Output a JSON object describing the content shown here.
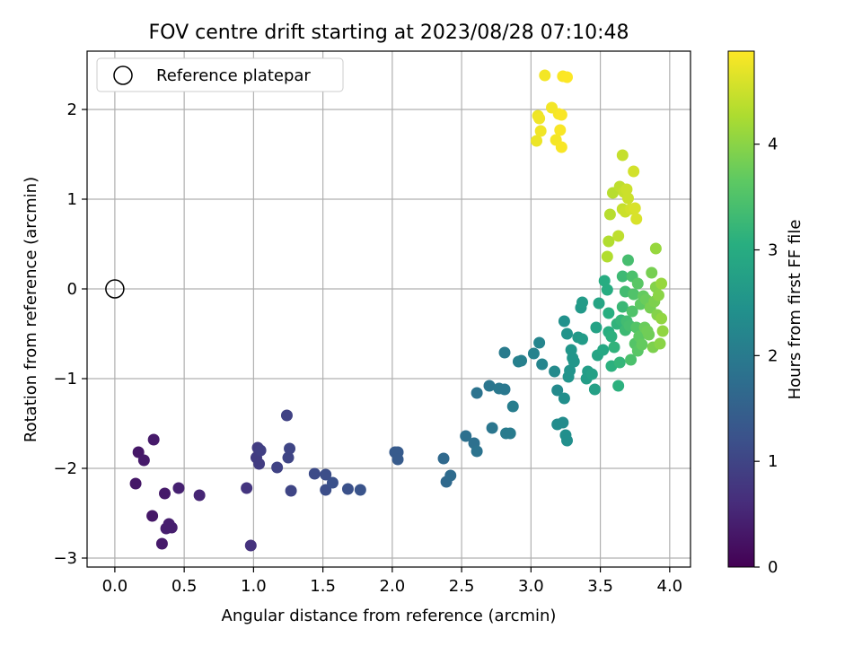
{
  "chart_data": {
    "type": "scatter",
    "title": "FOV centre drift starting at 2023/08/28 07:10:48",
    "xlabel": "Angular distance from reference (arcmin)",
    "ylabel": "Rotation from reference (arcmin)",
    "xlim": [
      -0.2,
      4.15
    ],
    "ylim": [
      -3.1,
      2.65
    ],
    "xticks": [
      0.0,
      0.5,
      1.0,
      1.5,
      2.0,
      2.5,
      3.0,
      3.5,
      4.0
    ],
    "xtick_labels": [
      "0.0",
      "0.5",
      "1.0",
      "1.5",
      "2.0",
      "2.5",
      "3.0",
      "3.5",
      "4.0"
    ],
    "yticks": [
      -3,
      -2,
      -1,
      0,
      1,
      2
    ],
    "ytick_labels": [
      "−3",
      "−2",
      "−1",
      "0",
      "1",
      "2"
    ],
    "grid": true,
    "legend": {
      "placement": "top-left",
      "entries": [
        {
          "label": "Reference platepar",
          "marker": "open-circle",
          "color": "#000000"
        }
      ]
    },
    "reference_point": {
      "x": 0.0,
      "y": 0.0,
      "label": "Reference platepar"
    },
    "colorbar": {
      "label": "Hours from first FF file",
      "colormap": "viridis",
      "range": [
        0,
        4.88
      ],
      "ticks": [
        0,
        1,
        2,
        3,
        4
      ],
      "tick_labels": [
        "0",
        "1",
        "2",
        "3",
        "4"
      ]
    },
    "points": [
      {
        "x": 0.15,
        "y": -2.17,
        "c": 0.3
      },
      {
        "x": 0.17,
        "y": -1.82,
        "c": 0.3
      },
      {
        "x": 0.21,
        "y": -1.91,
        "c": 0.35
      },
      {
        "x": 0.28,
        "y": -1.68,
        "c": 0.35
      },
      {
        "x": 0.27,
        "y": -2.53,
        "c": 0.3
      },
      {
        "x": 0.34,
        "y": -2.84,
        "c": 0.35
      },
      {
        "x": 0.36,
        "y": -2.28,
        "c": 0.35
      },
      {
        "x": 0.37,
        "y": -2.67,
        "c": 0.4
      },
      {
        "x": 0.39,
        "y": -2.62,
        "c": 0.4
      },
      {
        "x": 0.41,
        "y": -2.66,
        "c": 0.4
      },
      {
        "x": 0.46,
        "y": -2.22,
        "c": 0.45
      },
      {
        "x": 0.61,
        "y": -2.3,
        "c": 0.5
      },
      {
        "x": 0.95,
        "y": -2.22,
        "c": 0.75
      },
      {
        "x": 0.98,
        "y": -2.86,
        "c": 0.7
      },
      {
        "x": 1.02,
        "y": -1.88,
        "c": 0.85
      },
      {
        "x": 1.03,
        "y": -1.77,
        "c": 0.85
      },
      {
        "x": 1.04,
        "y": -1.95,
        "c": 0.85
      },
      {
        "x": 1.05,
        "y": -1.8,
        "c": 0.9
      },
      {
        "x": 1.17,
        "y": -1.99,
        "c": 0.95
      },
      {
        "x": 1.24,
        "y": -1.41,
        "c": 0.95
      },
      {
        "x": 1.25,
        "y": -1.88,
        "c": 1.0
      },
      {
        "x": 1.26,
        "y": -1.78,
        "c": 1.0
      },
      {
        "x": 1.27,
        "y": -2.25,
        "c": 1.0
      },
      {
        "x": 1.44,
        "y": -2.06,
        "c": 1.1
      },
      {
        "x": 1.52,
        "y": -2.07,
        "c": 1.15
      },
      {
        "x": 1.52,
        "y": -2.24,
        "c": 1.15
      },
      {
        "x": 1.57,
        "y": -2.16,
        "c": 1.2
      },
      {
        "x": 1.68,
        "y": -2.23,
        "c": 1.2
      },
      {
        "x": 1.77,
        "y": -2.24,
        "c": 1.25
      },
      {
        "x": 2.02,
        "y": -1.82,
        "c": 1.4
      },
      {
        "x": 2.04,
        "y": -1.82,
        "c": 1.4
      },
      {
        "x": 2.04,
        "y": -1.9,
        "c": 1.4
      },
      {
        "x": 2.37,
        "y": -1.89,
        "c": 1.65
      },
      {
        "x": 2.39,
        "y": -2.15,
        "c": 1.65
      },
      {
        "x": 2.42,
        "y": -2.08,
        "c": 1.7
      },
      {
        "x": 2.53,
        "y": -1.64,
        "c": 1.8
      },
      {
        "x": 2.59,
        "y": -1.72,
        "c": 1.8
      },
      {
        "x": 2.61,
        "y": -1.81,
        "c": 1.85
      },
      {
        "x": 2.61,
        "y": -1.16,
        "c": 1.85
      },
      {
        "x": 2.7,
        "y": -1.08,
        "c": 1.9
      },
      {
        "x": 2.72,
        "y": -1.55,
        "c": 1.9
      },
      {
        "x": 2.77,
        "y": -1.11,
        "c": 1.95
      },
      {
        "x": 2.81,
        "y": -0.71,
        "c": 2.0
      },
      {
        "x": 2.81,
        "y": -1.12,
        "c": 1.95
      },
      {
        "x": 2.82,
        "y": -1.61,
        "c": 2.0
      },
      {
        "x": 2.85,
        "y": -1.61,
        "c": 2.0
      },
      {
        "x": 2.87,
        "y": -1.31,
        "c": 2.05
      },
      {
        "x": 2.91,
        "y": -0.81,
        "c": 2.1
      },
      {
        "x": 2.93,
        "y": -0.8,
        "c": 2.1
      },
      {
        "x": 3.02,
        "y": -0.72,
        "c": 2.15
      },
      {
        "x": 3.06,
        "y": -0.6,
        "c": 2.2
      },
      {
        "x": 3.08,
        "y": -0.84,
        "c": 2.2
      },
      {
        "x": 3.17,
        "y": -0.92,
        "c": 2.3
      },
      {
        "x": 3.19,
        "y": -1.13,
        "c": 2.3
      },
      {
        "x": 3.19,
        "y": -1.51,
        "c": 2.35
      },
      {
        "x": 3.23,
        "y": -1.49,
        "c": 2.35
      },
      {
        "x": 3.24,
        "y": -1.22,
        "c": 2.4
      },
      {
        "x": 3.24,
        "y": -0.36,
        "c": 2.45
      },
      {
        "x": 3.25,
        "y": -1.63,
        "c": 2.4
      },
      {
        "x": 3.26,
        "y": -1.69,
        "c": 2.4
      },
      {
        "x": 3.26,
        "y": -0.5,
        "c": 2.5
      },
      {
        "x": 3.27,
        "y": -0.98,
        "c": 2.5
      },
      {
        "x": 3.28,
        "y": -0.91,
        "c": 2.5
      },
      {
        "x": 3.29,
        "y": -0.68,
        "c": 2.55
      },
      {
        "x": 3.3,
        "y": -0.77,
        "c": 2.55
      },
      {
        "x": 3.31,
        "y": -0.81,
        "c": 2.55
      },
      {
        "x": 3.34,
        "y": -0.54,
        "c": 2.6
      },
      {
        "x": 3.36,
        "y": -0.21,
        "c": 2.6
      },
      {
        "x": 3.37,
        "y": -0.15,
        "c": 2.65
      },
      {
        "x": 3.37,
        "y": -0.56,
        "c": 2.65
      },
      {
        "x": 3.4,
        "y": -1.0,
        "c": 2.7
      },
      {
        "x": 3.41,
        "y": -0.92,
        "c": 2.7
      },
      {
        "x": 3.44,
        "y": -0.95,
        "c": 2.75
      },
      {
        "x": 3.46,
        "y": -1.12,
        "c": 2.75
      },
      {
        "x": 3.47,
        "y": -0.43,
        "c": 2.8
      },
      {
        "x": 3.48,
        "y": -0.74,
        "c": 2.85
      },
      {
        "x": 3.49,
        "y": -0.16,
        "c": 2.85
      },
      {
        "x": 3.52,
        "y": -0.68,
        "c": 2.9
      },
      {
        "x": 3.53,
        "y": 0.09,
        "c": 3.0
      },
      {
        "x": 3.55,
        "y": -0.01,
        "c": 3.0
      },
      {
        "x": 3.56,
        "y": -0.27,
        "c": 3.05
      },
      {
        "x": 3.56,
        "y": -0.48,
        "c": 3.05
      },
      {
        "x": 3.58,
        "y": -0.53,
        "c": 3.1
      },
      {
        "x": 3.58,
        "y": -0.86,
        "c": 3.1
      },
      {
        "x": 3.6,
        "y": -0.65,
        "c": 3.15
      },
      {
        "x": 3.62,
        "y": -0.39,
        "c": 3.15
      },
      {
        "x": 3.63,
        "y": -1.08,
        "c": 3.1
      },
      {
        "x": 3.64,
        "y": -0.82,
        "c": 3.2
      },
      {
        "x": 3.65,
        "y": -0.35,
        "c": 3.2
      },
      {
        "x": 3.66,
        "y": -0.2,
        "c": 3.25
      },
      {
        "x": 3.66,
        "y": 0.14,
        "c": 3.3
      },
      {
        "x": 3.68,
        "y": -0.46,
        "c": 3.3
      },
      {
        "x": 3.68,
        "y": -0.03,
        "c": 3.35
      },
      {
        "x": 3.69,
        "y": -0.36,
        "c": 3.35
      },
      {
        "x": 3.7,
        "y": 0.32,
        "c": 3.4
      },
      {
        "x": 3.71,
        "y": -0.41,
        "c": 3.4
      },
      {
        "x": 3.72,
        "y": -0.79,
        "c": 3.45
      },
      {
        "x": 3.73,
        "y": 0.14,
        "c": 3.45
      },
      {
        "x": 3.73,
        "y": -0.25,
        "c": 3.5
      },
      {
        "x": 3.74,
        "y": -0.06,
        "c": 3.5
      },
      {
        "x": 3.75,
        "y": -0.61,
        "c": 3.55
      },
      {
        "x": 3.76,
        "y": -0.43,
        "c": 3.55
      },
      {
        "x": 3.77,
        "y": -0.69,
        "c": 3.6
      },
      {
        "x": 3.77,
        "y": 0.06,
        "c": 3.6
      },
      {
        "x": 3.78,
        "y": -0.53,
        "c": 3.65
      },
      {
        "x": 3.79,
        "y": -0.17,
        "c": 3.65
      },
      {
        "x": 3.8,
        "y": -0.62,
        "c": 3.7
      },
      {
        "x": 3.81,
        "y": -0.08,
        "c": 3.7
      },
      {
        "x": 3.82,
        "y": -0.43,
        "c": 3.75
      },
      {
        "x": 3.83,
        "y": -0.12,
        "c": 3.75
      },
      {
        "x": 3.84,
        "y": -0.47,
        "c": 3.8
      },
      {
        "x": 3.85,
        "y": -0.51,
        "c": 3.8
      },
      {
        "x": 3.86,
        "y": -0.21,
        "c": 3.85
      },
      {
        "x": 3.87,
        "y": 0.18,
        "c": 3.85
      },
      {
        "x": 3.88,
        "y": -0.65,
        "c": 3.9
      },
      {
        "x": 3.89,
        "y": -0.14,
        "c": 3.9
      },
      {
        "x": 3.9,
        "y": 0.02,
        "c": 3.95
      },
      {
        "x": 3.91,
        "y": -0.29,
        "c": 3.95
      },
      {
        "x": 3.92,
        "y": -0.07,
        "c": 4.0
      },
      {
        "x": 3.93,
        "y": -0.61,
        "c": 4.0
      },
      {
        "x": 3.94,
        "y": -0.33,
        "c": 4.05
      },
      {
        "x": 3.95,
        "y": -0.47,
        "c": 4.05
      },
      {
        "x": 3.9,
        "y": 0.45,
        "c": 4.1
      },
      {
        "x": 3.94,
        "y": 0.06,
        "c": 4.1
      },
      {
        "x": 3.55,
        "y": 0.36,
        "c": 4.3
      },
      {
        "x": 3.56,
        "y": 0.53,
        "c": 4.3
      },
      {
        "x": 3.57,
        "y": 0.83,
        "c": 4.35
      },
      {
        "x": 3.59,
        "y": 1.07,
        "c": 4.35
      },
      {
        "x": 3.63,
        "y": 0.59,
        "c": 4.4
      },
      {
        "x": 3.64,
        "y": 1.14,
        "c": 4.4
      },
      {
        "x": 3.66,
        "y": 1.49,
        "c": 4.45
      },
      {
        "x": 3.66,
        "y": 0.89,
        "c": 4.45
      },
      {
        "x": 3.67,
        "y": 1.08,
        "c": 4.45
      },
      {
        "x": 3.68,
        "y": 0.86,
        "c": 4.5
      },
      {
        "x": 3.69,
        "y": 1.11,
        "c": 4.5
      },
      {
        "x": 3.7,
        "y": 1.01,
        "c": 4.5
      },
      {
        "x": 3.72,
        "y": 0.89,
        "c": 4.55
      },
      {
        "x": 3.74,
        "y": 1.31,
        "c": 4.55
      },
      {
        "x": 3.75,
        "y": 0.9,
        "c": 4.6
      },
      {
        "x": 3.76,
        "y": 0.78,
        "c": 4.6
      },
      {
        "x": 3.04,
        "y": 1.65,
        "c": 4.75
      },
      {
        "x": 3.05,
        "y": 1.93,
        "c": 4.75
      },
      {
        "x": 3.06,
        "y": 1.9,
        "c": 4.78
      },
      {
        "x": 3.07,
        "y": 1.76,
        "c": 4.78
      },
      {
        "x": 3.1,
        "y": 2.38,
        "c": 4.8
      },
      {
        "x": 3.15,
        "y": 2.02,
        "c": 4.8
      },
      {
        "x": 3.18,
        "y": 1.66,
        "c": 4.82
      },
      {
        "x": 3.2,
        "y": 1.95,
        "c": 4.82
      },
      {
        "x": 3.21,
        "y": 1.77,
        "c": 4.84
      },
      {
        "x": 3.22,
        "y": 1.58,
        "c": 4.84
      },
      {
        "x": 3.22,
        "y": 1.94,
        "c": 4.85
      },
      {
        "x": 3.23,
        "y": 2.37,
        "c": 4.86
      },
      {
        "x": 3.26,
        "y": 2.36,
        "c": 4.87
      }
    ]
  }
}
